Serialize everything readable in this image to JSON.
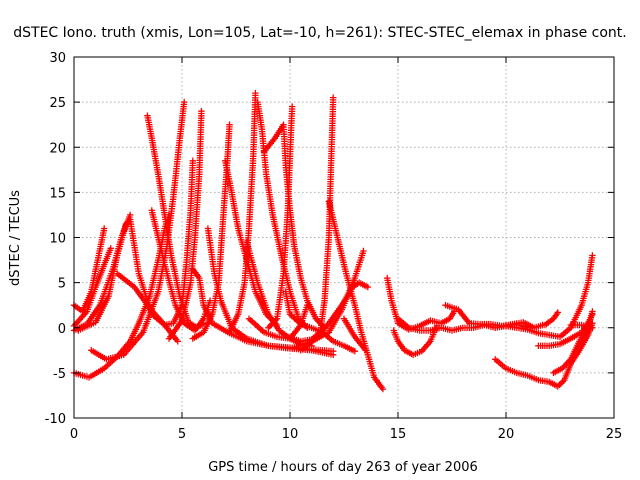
{
  "chart_data": {
    "type": "scatter",
    "title": "dSTEC Iono. truth (xmis, Lon=105, Lat=-10, h=261): STEC-STEC_elemax in phase cont.",
    "xlabel": "GPS time / hours of day 263 of year 2006",
    "ylabel": "dSTEC  / TECUs",
    "xlim": [
      0,
      25
    ],
    "ylim": [
      -10,
      30
    ],
    "xticks": [
      0,
      5,
      10,
      15,
      20,
      25
    ],
    "yticks": [
      -10,
      -5,
      0,
      5,
      10,
      15,
      20,
      25,
      30
    ],
    "grid": true,
    "marker": "plus",
    "color": "#ff0000",
    "tracks": [
      [
        [
          0.0,
          2.5
        ],
        [
          0.4,
          1.8
        ],
        [
          0.8,
          4.0
        ],
        [
          1.1,
          7.5
        ],
        [
          1.4,
          11.0
        ]
      ],
      [
        [
          0.0,
          0.2
        ],
        [
          0.6,
          1.8
        ],
        [
          1.0,
          4.5
        ],
        [
          1.4,
          7.0
        ],
        [
          1.7,
          8.8
        ]
      ],
      [
        [
          0.0,
          -0.3
        ],
        [
          0.6,
          0.4
        ],
        [
          1.2,
          2.5
        ],
        [
          1.8,
          6.5
        ],
        [
          2.2,
          10.0
        ],
        [
          2.6,
          12.5
        ]
      ],
      [
        [
          0.2,
          -0.3
        ],
        [
          1.0,
          0.6
        ],
        [
          1.6,
          3.5
        ],
        [
          2.0,
          8.0
        ],
        [
          2.4,
          11.5
        ],
        [
          2.6,
          12.0
        ],
        [
          3.0,
          6.0
        ],
        [
          3.6,
          1.5
        ],
        [
          4.2,
          0.3
        ],
        [
          4.8,
          -1.5
        ]
      ],
      [
        [
          0.0,
          -5.0
        ],
        [
          0.7,
          -5.5
        ],
        [
          1.4,
          -4.5
        ],
        [
          2.0,
          -3.2
        ],
        [
          2.6,
          -1.5
        ],
        [
          3.0,
          0.5
        ],
        [
          3.5,
          3.5
        ],
        [
          3.9,
          7.5
        ],
        [
          4.2,
          11.0
        ],
        [
          4.4,
          12.5
        ]
      ],
      [
        [
          0.8,
          -2.5
        ],
        [
          1.5,
          -3.5
        ],
        [
          2.3,
          -3.0
        ],
        [
          3.2,
          -0.5
        ],
        [
          3.9,
          4.0
        ],
        [
          4.3,
          9.0
        ],
        [
          4.6,
          14.5
        ],
        [
          4.9,
          21.0
        ],
        [
          5.1,
          25.0
        ]
      ],
      [
        [
          2.0,
          6.0
        ],
        [
          2.8,
          4.5
        ],
        [
          3.5,
          2.2
        ],
        [
          4.2,
          0.3
        ],
        [
          4.6,
          0.5
        ],
        [
          5.0,
          2.5
        ],
        [
          5.2,
          7.0
        ],
        [
          5.4,
          13.0
        ],
        [
          5.5,
          18.5
        ]
      ],
      [
        [
          3.4,
          23.5
        ],
        [
          3.6,
          21.0
        ],
        [
          3.9,
          17.0
        ],
        [
          4.2,
          12.5
        ],
        [
          4.5,
          8.0
        ],
        [
          4.9,
          3.5
        ],
        [
          5.3,
          0.6
        ],
        [
          5.7,
          0.0
        ],
        [
          6.0,
          0.5
        ]
      ],
      [
        [
          3.6,
          13.0
        ],
        [
          4.2,
          7.0
        ],
        [
          4.7,
          2.5
        ],
        [
          5.1,
          0.5
        ],
        [
          5.6,
          -0.3
        ],
        [
          6.0,
          1.0
        ],
        [
          6.3,
          3.0
        ]
      ],
      [
        [
          4.4,
          -1.2
        ],
        [
          5.0,
          0.8
        ],
        [
          5.4,
          5.0
        ],
        [
          5.6,
          10.0
        ],
        [
          5.8,
          17.0
        ],
        [
          5.9,
          24.0
        ]
      ],
      [
        [
          5.5,
          6.5
        ],
        [
          5.8,
          5.5
        ],
        [
          6.0,
          2.5
        ],
        [
          6.4,
          0.5
        ],
        [
          7.2,
          -0.6
        ],
        [
          8.0,
          -1.5
        ],
        [
          9.0,
          -2.0
        ],
        [
          10.0,
          -2.3
        ],
        [
          11.0,
          -2.5
        ],
        [
          12.0,
          -3.0
        ]
      ],
      [
        [
          5.5,
          -1.2
        ],
        [
          6.0,
          -0.5
        ],
        [
          6.4,
          1.5
        ],
        [
          6.7,
          5.0
        ],
        [
          6.9,
          12.0
        ],
        [
          7.1,
          18.5
        ],
        [
          7.2,
          22.5
        ]
      ],
      [
        [
          6.2,
          11.0
        ],
        [
          6.5,
          6.0
        ],
        [
          6.8,
          3.0
        ],
        [
          7.3,
          0.0
        ],
        [
          8.0,
          -1.2
        ],
        [
          9.0,
          -2.0
        ],
        [
          10.0,
          -2.2
        ],
        [
          11.0,
          -2.4
        ],
        [
          12.0,
          -2.6
        ]
      ],
      [
        [
          7.0,
          18.5
        ],
        [
          7.3,
          15.0
        ],
        [
          7.6,
          11.0
        ],
        [
          8.0,
          7.5
        ],
        [
          8.4,
          4.0
        ],
        [
          8.9,
          1.5
        ],
        [
          9.4,
          0.3
        ]
      ],
      [
        [
          7.2,
          -0.5
        ],
        [
          7.6,
          1.5
        ],
        [
          7.9,
          5.0
        ],
        [
          8.1,
          11.0
        ],
        [
          8.3,
          19.0
        ],
        [
          8.4,
          26.0
        ]
      ],
      [
        [
          8.0,
          9.5
        ],
        [
          8.5,
          5.0
        ],
        [
          9.0,
          1.5
        ],
        [
          9.5,
          -0.3
        ],
        [
          10.0,
          -1.2
        ],
        [
          10.5,
          -1.8
        ],
        [
          11.0,
          -2.0
        ]
      ],
      [
        [
          8.1,
          1.0
        ],
        [
          8.8,
          -0.5
        ],
        [
          9.4,
          -1.0
        ],
        [
          10.0,
          -1.2
        ],
        [
          10.5,
          0.3
        ],
        [
          10.8,
          2.5
        ]
      ],
      [
        [
          8.5,
          25.0
        ],
        [
          8.7,
          22.0
        ],
        [
          8.9,
          17.0
        ],
        [
          9.2,
          12.5
        ],
        [
          9.6,
          8.0
        ],
        [
          10.0,
          4.0
        ],
        [
          10.4,
          1.0
        ],
        [
          10.8,
          0.0
        ]
      ],
      [
        [
          8.8,
          19.5
        ],
        [
          9.3,
          21.0
        ],
        [
          9.7,
          22.5
        ],
        [
          9.8,
          18.0
        ],
        [
          10.0,
          13.0
        ],
        [
          10.2,
          9.0
        ],
        [
          10.5,
          5.5
        ],
        [
          10.8,
          3.0
        ],
        [
          11.2,
          1.0
        ],
        [
          11.6,
          0.0
        ]
      ],
      [
        [
          9.0,
          0.0
        ],
        [
          9.4,
          1.0
        ],
        [
          9.7,
          6.0
        ],
        [
          9.9,
          13.0
        ],
        [
          10.0,
          19.0
        ],
        [
          10.1,
          24.5
        ]
      ],
      [
        [
          9.8,
          4.0
        ],
        [
          10.0,
          1.5
        ],
        [
          10.5,
          0.4
        ],
        [
          11.0,
          0.0
        ],
        [
          11.5,
          -0.5
        ],
        [
          12.0,
          -1.5
        ],
        [
          12.5,
          -2.0
        ],
        [
          13.0,
          -2.6
        ]
      ],
      [
        [
          9.9,
          -1.0
        ],
        [
          10.5,
          -1.5
        ],
        [
          11.0,
          -1.3
        ],
        [
          11.4,
          -0.5
        ],
        [
          11.6,
          3.0
        ],
        [
          11.8,
          10.0
        ],
        [
          11.9,
          18.0
        ],
        [
          12.0,
          25.5
        ]
      ],
      [
        [
          10.2,
          -2.2
        ],
        [
          11.0,
          -1.5
        ],
        [
          11.8,
          -0.5
        ],
        [
          12.4,
          2.0
        ],
        [
          13.0,
          5.5
        ],
        [
          13.4,
          8.5
        ]
      ],
      [
        [
          10.5,
          -2.5
        ],
        [
          11.2,
          -1.2
        ],
        [
          11.8,
          0.5
        ],
        [
          12.4,
          2.5
        ],
        [
          12.9,
          4.5
        ],
        [
          13.2,
          5.0
        ],
        [
          13.6,
          4.5
        ]
      ],
      [
        [
          11.8,
          14.0
        ],
        [
          12.2,
          10.0
        ],
        [
          12.6,
          6.0
        ],
        [
          13.0,
          2.5
        ],
        [
          13.3,
          -0.5
        ],
        [
          13.6,
          -3.0
        ],
        [
          13.9,
          -5.5
        ],
        [
          14.3,
          -6.8
        ]
      ],
      [
        [
          12.5,
          1.0
        ],
        [
          13.0,
          -1.0
        ],
        [
          13.5,
          -2.5
        ]
      ],
      [
        [
          14.5,
          5.5
        ],
        [
          14.7,
          3.0
        ],
        [
          15.0,
          0.5
        ],
        [
          15.5,
          -0.2
        ],
        [
          16.0,
          0.2
        ],
        [
          16.5,
          0.8
        ],
        [
          17.0,
          0.5
        ],
        [
          17.4,
          1.0
        ],
        [
          17.6,
          1.8
        ]
      ],
      [
        [
          14.8,
          -0.3
        ],
        [
          15.0,
          -1.5
        ],
        [
          15.3,
          -2.5
        ],
        [
          15.7,
          -3.0
        ],
        [
          16.1,
          -2.6
        ],
        [
          16.5,
          -1.5
        ],
        [
          16.8,
          0.2
        ]
      ],
      [
        [
          15.0,
          1.0
        ],
        [
          15.5,
          0.0
        ],
        [
          16.0,
          -0.3
        ],
        [
          16.5,
          -0.3
        ],
        [
          17.0,
          0.0
        ],
        [
          17.5,
          -0.3
        ],
        [
          18.0,
          0.0
        ],
        [
          18.5,
          0.0
        ],
        [
          19.0,
          0.3
        ],
        [
          19.5,
          0.0
        ],
        [
          20.0,
          0.2
        ],
        [
          20.5,
          0.4
        ],
        [
          21.0,
          0.0
        ]
      ],
      [
        [
          17.2,
          2.5
        ],
        [
          17.8,
          2.0
        ],
        [
          18.3,
          0.5
        ],
        [
          18.8,
          0.4
        ],
        [
          19.3,
          0.4
        ],
        [
          19.8,
          0.2
        ],
        [
          20.3,
          0.4
        ],
        [
          20.8,
          0.6
        ],
        [
          21.3,
          0.0
        ],
        [
          21.7,
          0.3
        ]
      ],
      [
        [
          19.5,
          -3.5
        ],
        [
          20.0,
          -4.5
        ],
        [
          20.5,
          -5.0
        ],
        [
          21.0,
          -5.3
        ],
        [
          21.5,
          -5.8
        ],
        [
          22.0,
          -6.0
        ],
        [
          22.4,
          -6.5
        ],
        [
          22.7,
          -5.8
        ],
        [
          23.0,
          -4.0
        ],
        [
          23.4,
          -2.5
        ],
        [
          23.8,
          -0.8
        ],
        [
          24.0,
          0.5
        ]
      ],
      [
        [
          20.0,
          0.2
        ],
        [
          21.0,
          -0.2
        ],
        [
          21.5,
          -0.6
        ],
        [
          22.0,
          -0.8
        ],
        [
          22.5,
          -1.0
        ],
        [
          23.0,
          0.0
        ],
        [
          23.5,
          2.5
        ],
        [
          23.8,
          5.0
        ],
        [
          24.0,
          8.0
        ]
      ],
      [
        [
          21.5,
          -2.0
        ],
        [
          22.0,
          -2.0
        ],
        [
          22.5,
          -1.8
        ],
        [
          23.0,
          -1.2
        ],
        [
          23.5,
          -0.5
        ],
        [
          23.8,
          0.5
        ],
        [
          24.0,
          1.5
        ]
      ],
      [
        [
          21.8,
          0.3
        ],
        [
          22.2,
          1.0
        ],
        [
          22.4,
          1.7
        ]
      ],
      [
        [
          22.2,
          -5.0
        ],
        [
          22.6,
          -4.5
        ],
        [
          23.0,
          -3.5
        ],
        [
          23.4,
          -1.5
        ],
        [
          23.8,
          0.0
        ],
        [
          24.0,
          1.8
        ]
      ],
      [
        [
          23.0,
          0.3
        ],
        [
          23.5,
          0.3
        ],
        [
          24.0,
          0.0
        ]
      ]
    ]
  }
}
